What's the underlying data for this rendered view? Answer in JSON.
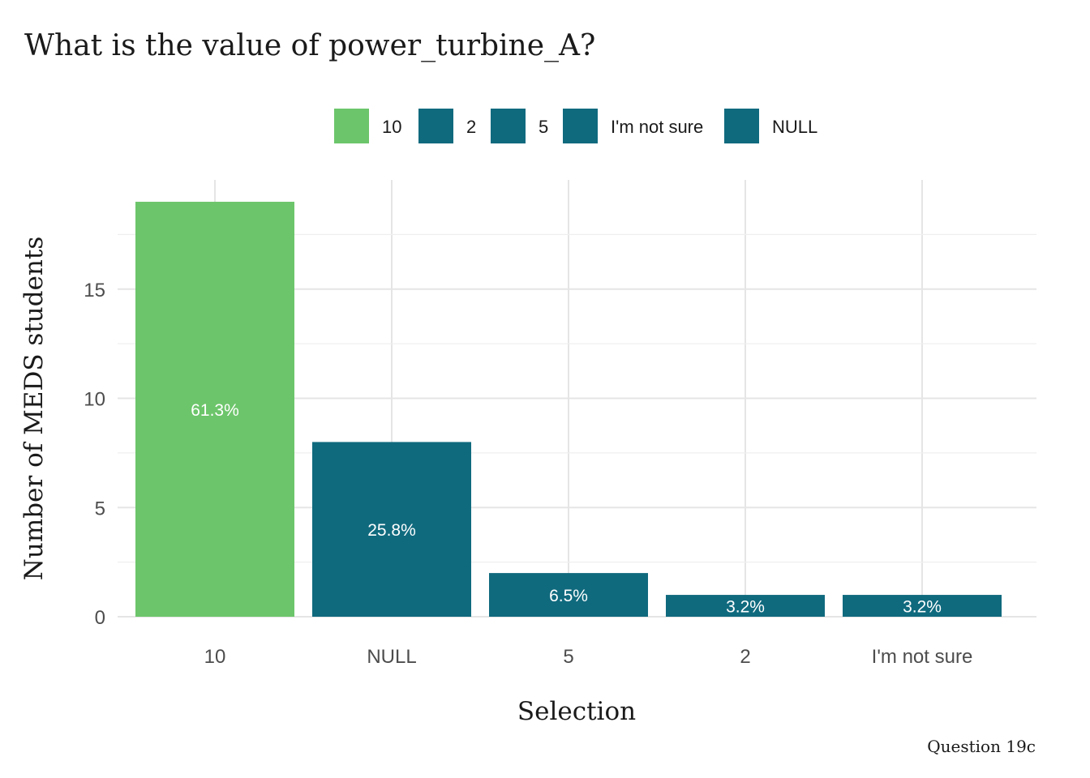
{
  "chart_data": {
    "type": "bar",
    "title": "What is the value of power_turbine_A?",
    "xlabel": "Selection",
    "ylabel": "Number of MEDS students",
    "caption": "Question 19c",
    "categories": [
      "10",
      "NULL",
      "5",
      "2",
      "I'm not sure"
    ],
    "values": [
      19,
      8,
      2,
      1,
      1
    ],
    "labels": [
      "61.3%",
      "25.8%",
      "6.5%",
      "3.2%",
      "3.2%"
    ],
    "ylim": [
      0,
      19
    ],
    "yticks": [
      0,
      5,
      10,
      15
    ],
    "grid": true,
    "legend": {
      "placement": "top",
      "entries": [
        "10",
        "2",
        "5",
        "I'm not sure",
        "NULL"
      ]
    },
    "colors": {
      "correct": "#6cc56a",
      "other": "#106a7e"
    },
    "highlight_category": "10"
  }
}
